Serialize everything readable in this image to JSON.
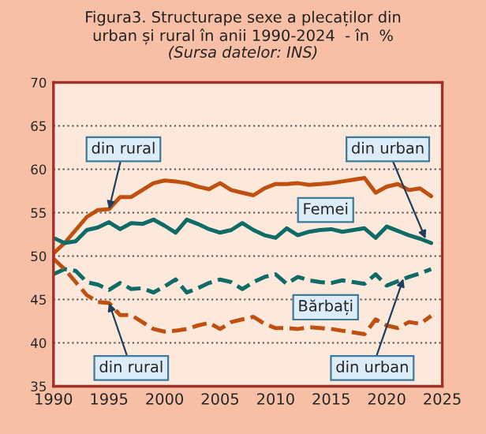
{
  "chart_data": {
    "type": "line",
    "title": "Figura3. Structurape sexe a plecaților din\nurban și rural în anii 1990-2024  - în  %",
    "subtitle": "(Sursa datelor: INS)",
    "x": [
      1990,
      1991,
      1992,
      1993,
      1994,
      1995,
      1996,
      1997,
      1998,
      1999,
      2000,
      2001,
      2002,
      2003,
      2004,
      2005,
      2006,
      2007,
      2008,
      2009,
      2010,
      2011,
      2012,
      2013,
      2014,
      2015,
      2016,
      2017,
      2018,
      2019,
      2020,
      2021,
      2022,
      2023,
      2024
    ],
    "series": [
      {
        "color": "#c0500f",
        "line_style": "solid",
        "values": [
          50.3,
          51.5,
          53.0,
          54.5,
          55.3,
          55.4,
          56.8,
          56.8,
          57.6,
          58.4,
          58.7,
          58.6,
          58.4,
          58.0,
          57.7,
          58.4,
          57.6,
          57.3,
          57.0,
          57.8,
          58.3,
          58.3,
          58.4,
          58.2,
          58.3,
          58.4,
          58.6,
          58.8,
          59.0,
          57.3,
          58.0,
          58.3,
          57.6,
          57.8,
          56.9
        ]
      },
      {
        "color": "#0e6b68",
        "line_style": "solid",
        "values": [
          52.1,
          51.5,
          51.7,
          53.0,
          53.3,
          53.9,
          53.1,
          53.8,
          53.7,
          54.2,
          53.5,
          52.7,
          54.2,
          53.7,
          53.1,
          52.7,
          53.0,
          53.8,
          53.0,
          52.4,
          52.1,
          53.2,
          52.4,
          52.8,
          53.0,
          53.1,
          52.8,
          53.0,
          53.2,
          52.1,
          53.4,
          52.9,
          52.4,
          52.0,
          51.5
        ]
      },
      {
        "color": "#0e6b68",
        "line_style": "dashed",
        "values": [
          47.9,
          48.5,
          48.3,
          47.0,
          46.7,
          46.1,
          46.9,
          46.2,
          46.3,
          45.8,
          46.5,
          47.3,
          45.8,
          46.3,
          46.9,
          47.3,
          47.0,
          46.2,
          47.0,
          47.6,
          47.9,
          46.8,
          47.6,
          47.2,
          47.0,
          46.9,
          47.2,
          47.0,
          46.8,
          47.9,
          46.6,
          47.1,
          47.6,
          48.0,
          48.5
        ]
      },
      {
        "color": "#c0500f",
        "line_style": "dashed",
        "values": [
          49.7,
          48.5,
          47.0,
          45.5,
          44.7,
          44.6,
          43.2,
          43.2,
          42.4,
          41.6,
          41.3,
          41.4,
          41.6,
          42.0,
          42.3,
          41.6,
          42.4,
          42.7,
          43.0,
          42.2,
          41.7,
          41.7,
          41.6,
          41.8,
          41.7,
          41.6,
          41.4,
          41.2,
          41.0,
          42.7,
          42.0,
          41.7,
          42.4,
          42.2,
          43.1
        ]
      }
    ],
    "annotations": [
      {
        "text": "din rural",
        "x": 1995,
        "y": 55.4
      },
      {
        "text": "din urban",
        "x": 2023.5,
        "y": 52.0
      },
      "Femei",
      "Bărbați",
      {
        "text": "din rural",
        "x": 1995,
        "y": 44.6
      },
      {
        "text": "din urban",
        "x": 2021.5,
        "y": 47.4
      }
    ],
    "xlim": [
      1990,
      2025
    ],
    "xticks": [
      1990,
      1995,
      2000,
      2005,
      2010,
      2015,
      2020,
      2025
    ],
    "ylim": [
      35,
      70
    ],
    "yticks": [
      35,
      40,
      45,
      50,
      55,
      60,
      65,
      70
    ],
    "grid": "y",
    "legend": false
  }
}
